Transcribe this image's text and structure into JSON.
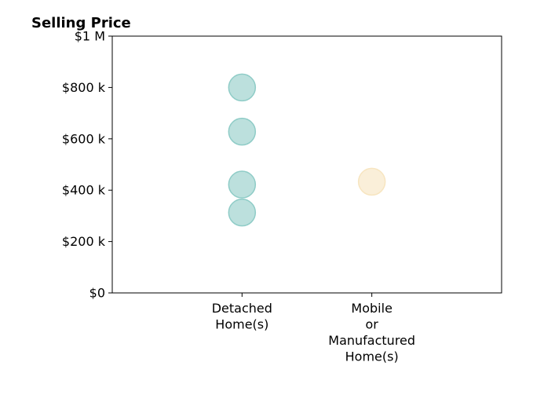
{
  "chart_data": {
    "type": "scatter",
    "title": "Selling Price",
    "xlabel": "",
    "ylabel": "",
    "categories": [
      [
        "Detached",
        "Home(s)"
      ],
      [
        "Mobile",
        "or",
        "Manufactured",
        "Home(s)"
      ]
    ],
    "x_range": [
      0,
      3
    ],
    "ylim": [
      0,
      1000000
    ],
    "y_ticks": [
      {
        "value": 0,
        "label": "$0"
      },
      {
        "value": 200000,
        "label": "$200 k"
      },
      {
        "value": 400000,
        "label": "$400 k"
      },
      {
        "value": 600000,
        "label": "$600 k"
      },
      {
        "value": 800000,
        "label": "$800 k"
      },
      {
        "value": 1000000,
        "label": "$1 M"
      }
    ],
    "grid": false,
    "series": [
      {
        "category_index": 0,
        "color": "#8fccc7",
        "values": [
          800000,
          628000,
          422000,
          313000
        ]
      },
      {
        "category_index": 1,
        "color": "#f7e5c0",
        "values": [
          433000
        ]
      }
    ]
  }
}
